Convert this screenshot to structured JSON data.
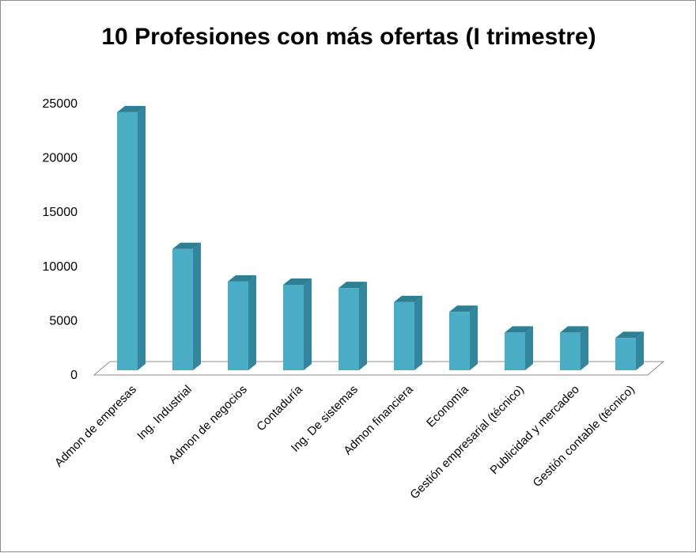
{
  "chart_data": {
    "type": "bar",
    "title": "10 Profesiones con más ofertas (I trimestre)",
    "xlabel": "",
    "ylabel": "",
    "categories": [
      "Admon de empresas",
      "Ing. Industrial",
      "Admon de negocios",
      "Contaduría",
      "Ing. De sistemas",
      "Admon financiera",
      "Economía",
      "Gestión empresarial (técnico)",
      "Publicidad y mercadeo",
      "Gestión contable (técnico)"
    ],
    "values": [
      23700,
      11100,
      8100,
      7800,
      7500,
      6200,
      5300,
      3400,
      3400,
      2900
    ],
    "yticks": [
      "0",
      "5000",
      "10000",
      "15000",
      "20000",
      "25000"
    ],
    "ylim": [
      0,
      25000
    ],
    "grid": false,
    "legend": "none",
    "style": "3d-column",
    "colors": {
      "front": "#4bacc6",
      "side": "#31859c",
      "top": "#2f7f93"
    }
  }
}
